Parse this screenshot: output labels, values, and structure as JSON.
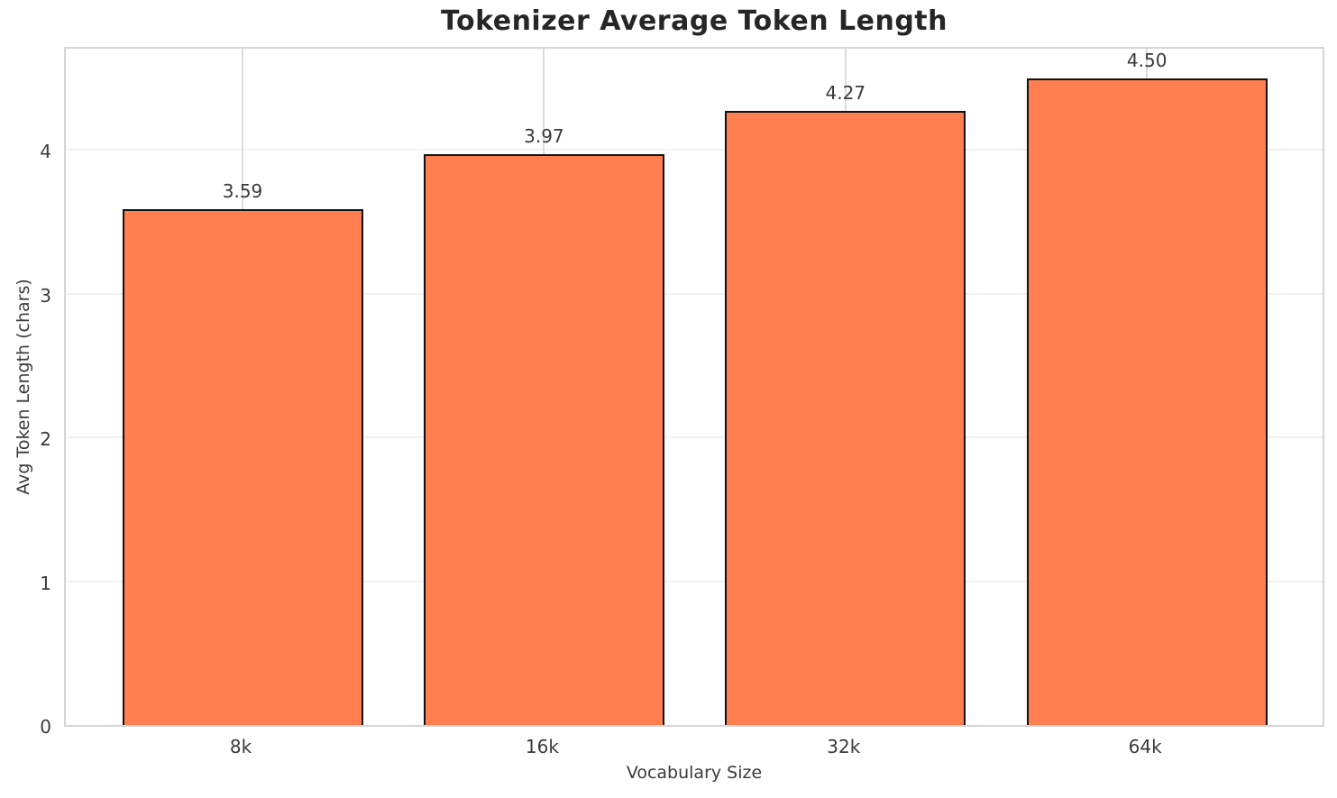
{
  "figure": {
    "title": "Tokenizer Average Token Length",
    "xlabel": "Vocabulary Size",
    "ylabel": "Avg Token Length (chars)"
  },
  "chart_data": {
    "type": "bar",
    "title": "Tokenizer Average Token Length",
    "xlabel": "Vocabulary Size",
    "ylabel": "Avg Token Length (chars)",
    "categories": [
      "8k",
      "16k",
      "32k",
      "64k"
    ],
    "values": [
      3.59,
      3.97,
      4.27,
      4.5
    ],
    "value_labels": [
      "3.59",
      "3.97",
      "4.27",
      "4.50"
    ],
    "yticks": [
      0,
      1,
      2,
      3,
      4
    ],
    "ylim": [
      0,
      4.73
    ],
    "grid": true,
    "legend_position": "none",
    "bar_color": "#FF7F50",
    "bar_edge_color": "#111111",
    "grid_color_horizontal": "#f1f1f1",
    "grid_color_vertical": "#dcdcdc",
    "spine_color": "#d4d4d4",
    "title_color": "#262626",
    "tick_label_color": "#3a3a3a"
  }
}
